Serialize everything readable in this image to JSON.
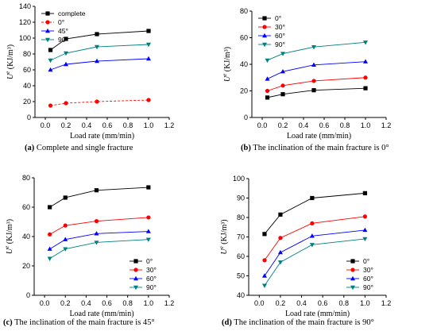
{
  "chart_data": [
    {
      "type": "line",
      "caption_letter": "(a)",
      "caption_text": " Complete and single fracture",
      "xlabel": "Load rate (mm/min)",
      "ylabel": "U",
      "ylabel_sup": "e",
      "ylabel_unit": " (KJ/m³)",
      "xlim": [
        -0.1,
        1.2
      ],
      "ylim": [
        0,
        140
      ],
      "xticks": [
        0.0,
        0.2,
        0.4,
        0.6,
        0.8,
        1.0,
        1.2
      ],
      "yticks": [
        0,
        20,
        40,
        60,
        80,
        100,
        120,
        140
      ],
      "legend_position": "top-left",
      "x": [
        0.05,
        0.2,
        0.5,
        1.0
      ],
      "series": [
        {
          "name": "complete",
          "color": "#000000",
          "marker": "square",
          "dashed": false,
          "values": [
            85,
            99,
            105,
            109
          ]
        },
        {
          "name": "0°",
          "color": "#ff0000",
          "marker": "circle",
          "dashed": true,
          "values": [
            15,
            18,
            20,
            22
          ]
        },
        {
          "name": "45°",
          "color": "#0000ff",
          "marker": "triangle-up",
          "dashed": false,
          "values": [
            60,
            67,
            71,
            74
          ]
        },
        {
          "name": "90°",
          "color": "#008080",
          "marker": "triangle-down",
          "dashed": false,
          "values": [
            72,
            81,
            89,
            92
          ]
        }
      ]
    },
    {
      "type": "line",
      "caption_letter": "(b)",
      "caption_text": " The inclination of the main fracture is 0°",
      "xlabel": "Load rate (mm/min)",
      "ylabel": "U",
      "ylabel_sup": "e",
      "ylabel_unit": " (KJ/m³)",
      "xlim": [
        -0.1,
        1.2
      ],
      "ylim": [
        0,
        80
      ],
      "xticks": [
        0.0,
        0.2,
        0.4,
        0.6,
        0.8,
        1.0,
        1.2
      ],
      "yticks": [
        0,
        20,
        40,
        60,
        80
      ],
      "legend_position": "top-left",
      "x": [
        0.05,
        0.2,
        0.5,
        1.0
      ],
      "series": [
        {
          "name": "0°",
          "color": "#000000",
          "marker": "square",
          "dashed": false,
          "values": [
            15,
            17.5,
            20.5,
            22
          ]
        },
        {
          "name": "30°",
          "color": "#ff0000",
          "marker": "circle",
          "dashed": false,
          "values": [
            20,
            24,
            27.5,
            30
          ]
        },
        {
          "name": "60°",
          "color": "#0000ff",
          "marker": "triangle-up",
          "dashed": false,
          "values": [
            29,
            34.5,
            39.5,
            42
          ]
        },
        {
          "name": "90°",
          "color": "#008080",
          "marker": "triangle-down",
          "dashed": false,
          "values": [
            43,
            48,
            53,
            56.5
          ]
        }
      ]
    },
    {
      "type": "line",
      "caption_letter": "(c)",
      "caption_text": " The inclination of the main fracture is 45°",
      "xlabel": "Load rate (mm/min)",
      "ylabel": "U",
      "ylabel_sup": "e",
      "ylabel_unit": " (KJ/m³)",
      "xlim": [
        -0.1,
        1.2
      ],
      "ylim": [
        0,
        80
      ],
      "xticks": [
        0.0,
        0.2,
        0.4,
        0.6,
        0.8,
        1.0,
        1.2
      ],
      "yticks": [
        0,
        20,
        40,
        60,
        80
      ],
      "legend_position": "bottom-right",
      "x": [
        0.05,
        0.2,
        0.5,
        1.0
      ],
      "series": [
        {
          "name": "0°",
          "color": "#000000",
          "marker": "square",
          "dashed": false,
          "values": [
            60,
            66.5,
            71.5,
            73.5
          ]
        },
        {
          "name": "30°",
          "color": "#ff0000",
          "marker": "circle",
          "dashed": false,
          "values": [
            41.5,
            47.5,
            50.5,
            53
          ]
        },
        {
          "name": "60°",
          "color": "#0000ff",
          "marker": "triangle-up",
          "dashed": false,
          "values": [
            31.5,
            38,
            42,
            43.5
          ]
        },
        {
          "name": "90°",
          "color": "#008080",
          "marker": "triangle-down",
          "dashed": false,
          "values": [
            25,
            31.5,
            36,
            38
          ]
        }
      ]
    },
    {
      "type": "line",
      "caption_letter": "(d)",
      "caption_text": " The inclination of the main fracture is 90°",
      "xlabel": "Load rate (mm/min)",
      "ylabel": "U",
      "ylabel_sup": "e",
      "ylabel_unit": " (KJ/m³)",
      "xlim": [
        -0.1,
        1.2
      ],
      "ylim": [
        40,
        100
      ],
      "xticks": [
        0.0,
        0.2,
        0.4,
        0.6,
        0.8,
        1.0,
        1.2
      ],
      "yticks": [
        40,
        50,
        60,
        70,
        80,
        90,
        100
      ],
      "legend_position": "bottom-right",
      "x": [
        0.05,
        0.2,
        0.5,
        1.0
      ],
      "series": [
        {
          "name": "0°",
          "color": "#000000",
          "marker": "square",
          "dashed": false,
          "values": [
            71.5,
            81.5,
            90,
            92.5
          ]
        },
        {
          "name": "30°",
          "color": "#ff0000",
          "marker": "circle",
          "dashed": false,
          "values": [
            58,
            69.5,
            77,
            80.5
          ]
        },
        {
          "name": "60°",
          "color": "#0000ff",
          "marker": "triangle-up",
          "dashed": false,
          "values": [
            50,
            62,
            70.5,
            73.5
          ]
        },
        {
          "name": "90°",
          "color": "#008080",
          "marker": "triangle-down",
          "dashed": false,
          "values": [
            45,
            57,
            66,
            69
          ]
        }
      ]
    }
  ]
}
